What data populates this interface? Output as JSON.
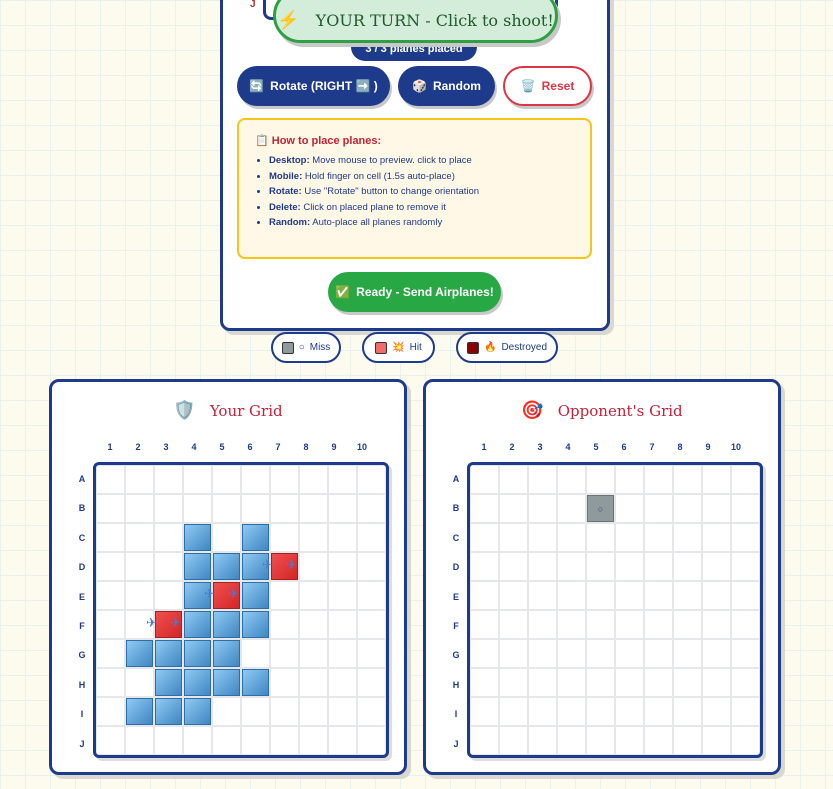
{
  "toast": {
    "icon": "⚡",
    "text": "YOUR TURN - Click to shoot!"
  },
  "placement": {
    "prev_row_label": "J",
    "count": "3 / 3 planes placed",
    "rotate": {
      "icon": "🔄",
      "label": "Rotate (RIGHT ➡️ )"
    },
    "random": {
      "icon": "🎲",
      "label": "Random"
    },
    "reset": {
      "icon": "🗑️",
      "label": "Reset"
    },
    "info": {
      "icon": "📋",
      "title": "How to place planes:",
      "items": [
        {
          "k": "Desktop:",
          "v": " Move mouse to preview. click to place"
        },
        {
          "k": "Mobile:",
          "v": " Hold finger on cell (1.5s auto-place)"
        },
        {
          "k": "Rotate:",
          "v": " Use \"Rotate\" button to change orientation"
        },
        {
          "k": "Delete:",
          "v": " Click on placed plane to remove it"
        },
        {
          "k": "Random:",
          "v": " Auto-place all planes randomly"
        }
      ]
    },
    "ready": {
      "icon": "✅",
      "label": "Ready - Send Airplanes!"
    }
  },
  "legend": [
    {
      "color": "#8f9a9c",
      "icon": "○",
      "label": "Miss"
    },
    {
      "color": "#f26b6b",
      "icon": "💥",
      "label": "Hit"
    },
    {
      "color": "#8b0000",
      "icon": "🔥",
      "label": "Destroyed"
    }
  ],
  "columns": [
    "1",
    "2",
    "3",
    "4",
    "5",
    "6",
    "7",
    "8",
    "9",
    "10"
  ],
  "rows": [
    "A",
    "B",
    "C",
    "D",
    "E",
    "F",
    "G",
    "H",
    "I",
    "J"
  ],
  "your_grid": {
    "icon": "🛡️",
    "title": "Your Grid",
    "ships": [
      "C4",
      "C6",
      "D4",
      "D5",
      "D6",
      "E4",
      "E6",
      "F4",
      "F5",
      "F6",
      "G2",
      "G3",
      "G4",
      "G5",
      "H3",
      "H4",
      "H5",
      "H6",
      "I2",
      "I3",
      "I4"
    ],
    "plane_heads": [
      "D7",
      "E5",
      "F3"
    ],
    "plane_icon": "✈"
  },
  "opponent_grid": {
    "icon": "🎯",
    "title": "Opponent's Grid",
    "misses": [
      "B5"
    ],
    "miss_mark": "○"
  }
}
